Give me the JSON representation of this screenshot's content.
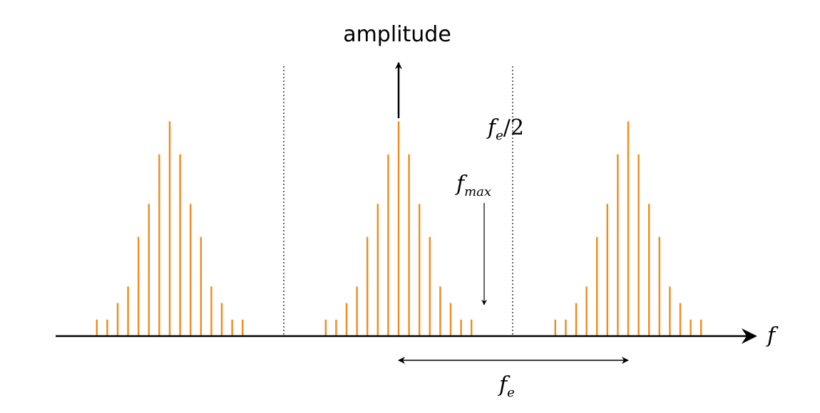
{
  "labels": {
    "vertical_axis": "amplitude",
    "horizontal_axis": "f",
    "half_sampling": {
      "base": "f",
      "sub": "e",
      "suffix": "/2"
    },
    "fmax": {
      "base": "f",
      "sub": "max"
    },
    "sampling_frequency": {
      "base": "f",
      "sub": "e"
    }
  },
  "spectrum": {
    "line_values": [
      1,
      1,
      2,
      3,
      6,
      8,
      11,
      13,
      11,
      8,
      6,
      3,
      2,
      1,
      1
    ],
    "spectrum_count": 3
  },
  "colors": {
    "spectral_lines": "#f08a1c",
    "axis": "#000000",
    "dotted_separator": "#000000"
  }
}
